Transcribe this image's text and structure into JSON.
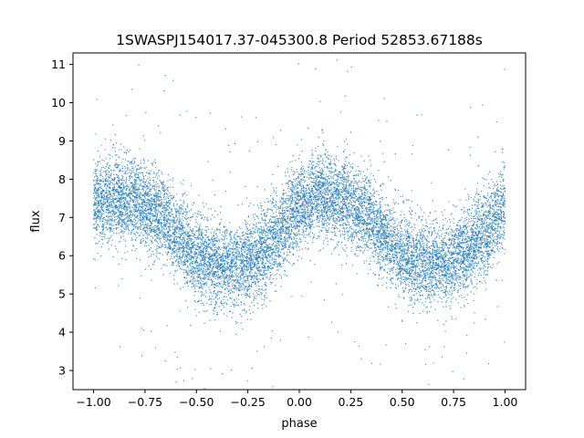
{
  "chart_data": {
    "type": "scatter",
    "title": "1SWASPJ154017.37-045300.8 Period 52853.67188s",
    "xlabel": "phase",
    "ylabel": "flux",
    "xlim": [
      -1.1,
      1.1
    ],
    "ylim": [
      2.5,
      11.3
    ],
    "xticks": [
      -1.0,
      -0.75,
      -0.5,
      -0.25,
      0.0,
      0.25,
      0.5,
      0.75,
      1.0
    ],
    "xtick_labels": [
      "−1.00",
      "−0.75",
      "−0.50",
      "−0.25",
      "0.00",
      "0.25",
      "0.50",
      "0.75",
      "1.00"
    ],
    "yticks": [
      3,
      4,
      5,
      6,
      7,
      8,
      9,
      10,
      11
    ],
    "ytick_labels": [
      "3",
      "4",
      "5",
      "6",
      "7",
      "8",
      "9",
      "10",
      "11"
    ],
    "grid": false,
    "marker_color": "#1f77b4",
    "series": [
      {
        "x": [
          -1.0,
          -0.9,
          -0.8,
          -0.7,
          -0.6,
          -0.5,
          -0.4,
          -0.3,
          -0.2,
          -0.1,
          0.0,
          0.1,
          0.2,
          0.3,
          0.4,
          0.5,
          0.6,
          0.7,
          0.8,
          0.9,
          1.0
        ],
        "y": [
          7.35,
          7.5,
          7.45,
          7.1,
          6.6,
          6.0,
          5.75,
          5.7,
          5.95,
          6.6,
          7.3,
          7.55,
          7.5,
          7.2,
          6.6,
          6.0,
          5.8,
          5.75,
          6.05,
          6.65,
          7.25
        ]
      }
    ]
  }
}
